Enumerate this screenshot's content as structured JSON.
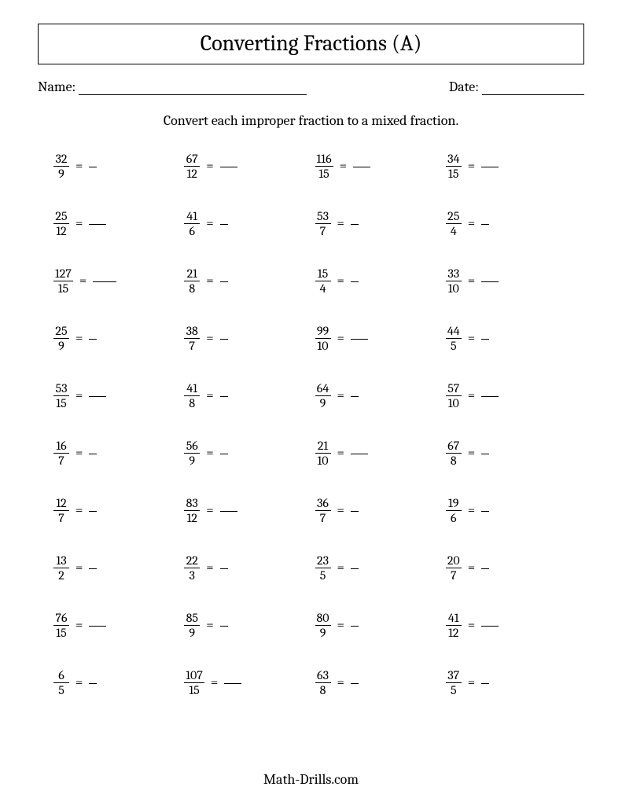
{
  "title": "Converting Fractions (A)",
  "name_label": "Name:",
  "date_label": "Date:",
  "name_line_width": 290,
  "date_line_width": 130,
  "instructions": "Convert each improper fraction to a mixed fraction.",
  "footer": "Math-Drills.com",
  "equals": "=",
  "colors": {
    "text": "#000000",
    "background": "#ffffff",
    "border": "#000000"
  },
  "typography": {
    "title_fontsize": 28,
    "body_fontsize": 18,
    "problem_fontsize": 16,
    "font_family": "Cambria, Georgia, serif"
  },
  "layout": {
    "columns": 4,
    "rows": 10
  },
  "answer_line_widths": {
    "short": 10,
    "med": 22,
    "long": 30
  },
  "problems": [
    {
      "num": "32",
      "den": "9",
      "w": "short"
    },
    {
      "num": "67",
      "den": "12",
      "w": "med"
    },
    {
      "num": "116",
      "den": "15",
      "w": "med"
    },
    {
      "num": "34",
      "den": "15",
      "w": "med"
    },
    {
      "num": "25",
      "den": "12",
      "w": "med"
    },
    {
      "num": "41",
      "den": "6",
      "w": "short"
    },
    {
      "num": "53",
      "den": "7",
      "w": "short"
    },
    {
      "num": "25",
      "den": "4",
      "w": "short"
    },
    {
      "num": "127",
      "den": "15",
      "w": "long"
    },
    {
      "num": "21",
      "den": "8",
      "w": "short"
    },
    {
      "num": "15",
      "den": "4",
      "w": "short"
    },
    {
      "num": "33",
      "den": "10",
      "w": "med"
    },
    {
      "num": "25",
      "den": "9",
      "w": "short"
    },
    {
      "num": "38",
      "den": "7",
      "w": "short"
    },
    {
      "num": "99",
      "den": "10",
      "w": "med"
    },
    {
      "num": "44",
      "den": "5",
      "w": "short"
    },
    {
      "num": "53",
      "den": "15",
      "w": "med"
    },
    {
      "num": "41",
      "den": "8",
      "w": "short"
    },
    {
      "num": "64",
      "den": "9",
      "w": "short"
    },
    {
      "num": "57",
      "den": "10",
      "w": "med"
    },
    {
      "num": "16",
      "den": "7",
      "w": "short"
    },
    {
      "num": "56",
      "den": "9",
      "w": "short"
    },
    {
      "num": "21",
      "den": "10",
      "w": "med"
    },
    {
      "num": "67",
      "den": "8",
      "w": "short"
    },
    {
      "num": "12",
      "den": "7",
      "w": "short"
    },
    {
      "num": "83",
      "den": "12",
      "w": "med"
    },
    {
      "num": "36",
      "den": "7",
      "w": "short"
    },
    {
      "num": "19",
      "den": "6",
      "w": "short"
    },
    {
      "num": "13",
      "den": "2",
      "w": "short"
    },
    {
      "num": "22",
      "den": "3",
      "w": "short"
    },
    {
      "num": "23",
      "den": "5",
      "w": "short"
    },
    {
      "num": "20",
      "den": "7",
      "w": "short"
    },
    {
      "num": "76",
      "den": "15",
      "w": "med"
    },
    {
      "num": "85",
      "den": "9",
      "w": "short"
    },
    {
      "num": "80",
      "den": "9",
      "w": "short"
    },
    {
      "num": "41",
      "den": "12",
      "w": "med"
    },
    {
      "num": "6",
      "den": "5",
      "w": "short"
    },
    {
      "num": "107",
      "den": "15",
      "w": "med"
    },
    {
      "num": "63",
      "den": "8",
      "w": "short"
    },
    {
      "num": "37",
      "den": "5",
      "w": "short"
    }
  ]
}
